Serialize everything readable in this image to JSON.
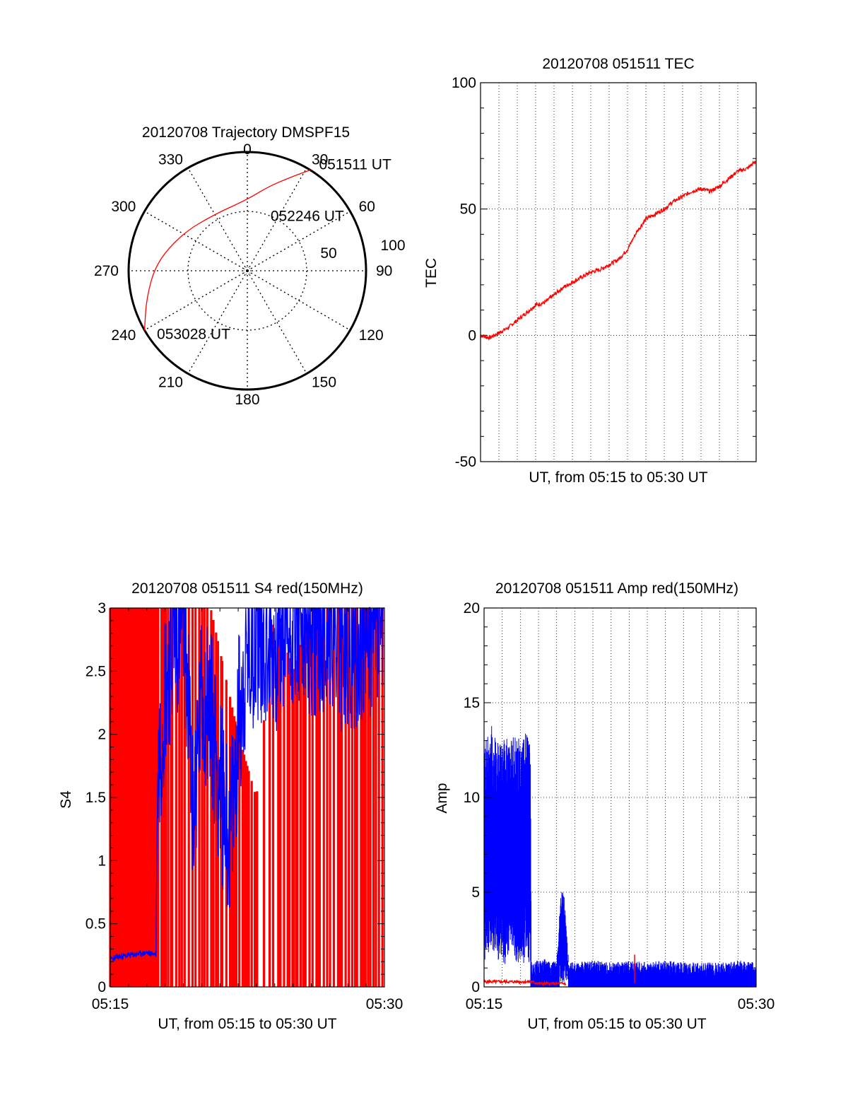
{
  "colors": {
    "red": "#ff0000",
    "blue": "#0000ff",
    "axis": "#000000"
  },
  "chart_data": [
    {
      "type": "polar",
      "title": "20120708 Trajectory DMSPF15",
      "angle_labels": [
        "0",
        "30",
        "60",
        "90",
        "120",
        "150",
        "180",
        "210",
        "240",
        "270",
        "300",
        "330"
      ],
      "radial_labels": [
        "50",
        "100"
      ],
      "track": {
        "color": "red",
        "points": [
          {
            "az": 32,
            "r": 100
          },
          {
            "az": 25,
            "r": 87
          },
          {
            "az": 14,
            "r": 73
          },
          {
            "az": 0,
            "r": 60
          },
          {
            "az": 330,
            "r": 55
          },
          {
            "az": 300,
            "r": 63
          },
          {
            "az": 275,
            "r": 77
          },
          {
            "az": 255,
            "r": 88
          },
          {
            "az": 240,
            "r": 100
          }
        ]
      },
      "annotations": [
        {
          "text": "051511 UT",
          "az": 34,
          "r": 108
        },
        {
          "text": "052246 UT",
          "az": 23,
          "r": 50
        },
        {
          "text": "053028 UT",
          "az": 235,
          "r": 93
        }
      ]
    },
    {
      "type": "line",
      "title": "20120708 051511 TEC",
      "xlabel": "UT, from 05:15 to 05:30 UT",
      "ylabel": "TEC",
      "xlim": [
        0,
        15
      ],
      "ylim": [
        -50,
        100
      ],
      "yticks": [
        "100",
        "50",
        "0",
        "-50"
      ],
      "series": [
        {
          "color": "red",
          "x": [
            0,
            0.5,
            1,
            1.5,
            2,
            2.5,
            3,
            3.5,
            4,
            4.5,
            5,
            5.5,
            6,
            6.5,
            7,
            7.5,
            8,
            8.5,
            9,
            9.5,
            10,
            10.5,
            11,
            11.5,
            12,
            12.5,
            13,
            13.5,
            14,
            14.5,
            15
          ],
          "y": [
            0,
            -1,
            1,
            3,
            6,
            9,
            12,
            13,
            16,
            19,
            21,
            23,
            25,
            26,
            28,
            30,
            34,
            41,
            46,
            48,
            50,
            53,
            55,
            57,
            58,
            57,
            59,
            62,
            65,
            66,
            69
          ]
        }
      ]
    },
    {
      "type": "line",
      "title": "20120708 051511 S4 red(150MHz)",
      "xlabel": "UT, from 05:15 to 05:30 UT",
      "ylabel": "S4",
      "xlim": [
        0,
        15
      ],
      "ylim": [
        0,
        3
      ],
      "xticks": [
        "05:15",
        "05:30"
      ],
      "yticks": [
        "0",
        "0.5",
        "1",
        "1.5",
        "2",
        "2.5",
        "3"
      ],
      "series": [
        {
          "color": "blue",
          "x": [
            0,
            0.5,
            1,
            1.5,
            2,
            2.5,
            2.6,
            3,
            3.5,
            4,
            4.2,
            4.4,
            4.5,
            5,
            5.5,
            6,
            6.5,
            6.8,
            7,
            7.5,
            8,
            9,
            10,
            11,
            12,
            13,
            14,
            15
          ],
          "y": [
            0.22,
            0.24,
            0.25,
            0.26,
            0.27,
            0.26,
            1.7,
            2.4,
            2.8,
            2.9,
            2.5,
            1.8,
            1.3,
            2.3,
            2.2,
            1.6,
            1.2,
            1.5,
            2.1,
            2.6,
            2.8,
            2.7,
            2.9,
            2.8,
            2.9,
            2.6,
            2.8,
            2.9
          ]
        },
        {
          "color": "red",
          "x": [
            0,
            2.5,
            4.5,
            5.5,
            7,
            8,
            9,
            10,
            11,
            12,
            13,
            15
          ],
          "y": [
            3,
            3,
            3,
            3,
            2,
            1.5,
            3,
            2.5,
            3,
            3,
            3,
            3
          ]
        }
      ]
    },
    {
      "type": "line",
      "title": "20120708 051511 Amp red(150MHz)",
      "xlabel": "UT, from 05:15 to 05:30 UT",
      "ylabel": "Amp",
      "xlim": [
        0,
        15
      ],
      "ylim": [
        0,
        20
      ],
      "xticks": [
        "05:15",
        "05:30"
      ],
      "yticks": [
        "0",
        "5",
        "10",
        "15",
        "20"
      ],
      "series": [
        {
          "color": "blue",
          "x": [
            0,
            0.3,
            0.6,
            1,
            1.3,
            1.6,
            2,
            2.3,
            2.55,
            2.6,
            3,
            3.5,
            4,
            4.2,
            4.4,
            4.6,
            5,
            6,
            7,
            8,
            9,
            10,
            11,
            12,
            13,
            14,
            15
          ],
          "y": [
            7,
            8,
            7.5,
            7,
            7.2,
            7.5,
            7,
            7.4,
            7.2,
            0.5,
            0.6,
            0.7,
            0.5,
            3.5,
            3.8,
            0.6,
            0.5,
            0.6,
            0.5,
            0.6,
            0.5,
            0.6,
            0.5,
            0.5,
            0.5,
            0.6,
            0.5
          ]
        },
        {
          "color": "red",
          "x": [
            0,
            1,
            2,
            2.6,
            3,
            4,
            5,
            8,
            8.3,
            8.6,
            15
          ],
          "y": [
            0.2,
            0.2,
            0.2,
            0.2,
            0.1,
            0.1,
            0.1,
            0.1,
            1.8,
            0.1,
            0.1
          ]
        }
      ]
    }
  ]
}
